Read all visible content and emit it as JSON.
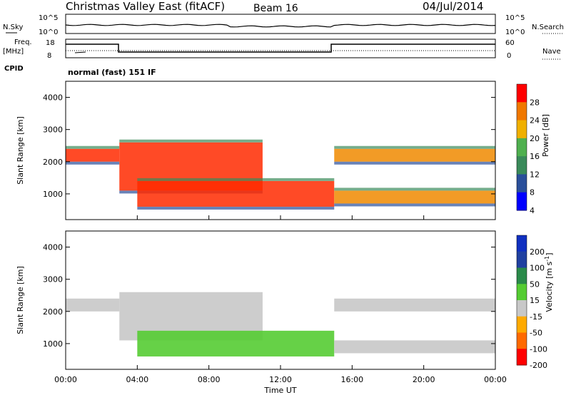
{
  "header": {
    "title": "Christmas Valley East (fitACF)",
    "beam": "Beam 16",
    "date": "04/Jul/2014"
  },
  "noise_panel": {
    "left_label": "N.Sky",
    "left_ticks": [
      "10^5",
      "10^0"
    ],
    "right_label": "N.Search",
    "right_ticks": [
      "10^5",
      "10^0"
    ]
  },
  "freq_panel": {
    "left_label_1": "Freq.",
    "left_label_2": "[MHz]",
    "left_ticks": [
      "18",
      "8"
    ],
    "right_label": "Nave",
    "right_ticks": [
      "60",
      "0"
    ]
  },
  "cpid": {
    "label": "CPID",
    "value": "normal (fast) 151 IF"
  },
  "colors": {
    "power": [
      "#0000ff",
      "#2a4f9a",
      "#3a8a5a",
      "#4fb04f",
      "#f0b000",
      "#f07800",
      "#ff0000"
    ],
    "velocity": [
      "#ff0000",
      "#ff6a00",
      "#ffaa00",
      "#c8c8c8",
      "#55cc33",
      "#2a8a4a",
      "#2040a0",
      "#1030c0"
    ]
  },
  "chart_data": [
    {
      "type": "heatmap",
      "name": "power",
      "ylabel": "Slant Range [km]",
      "yticks": [
        "1000",
        "2000",
        "3000",
        "4000"
      ],
      "ylim": [
        200,
        4500
      ],
      "xlim": [
        0,
        24
      ],
      "colorbar": {
        "label": "Power [dB]",
        "ticks": [
          "4",
          "8",
          "12",
          "16",
          "20",
          "24",
          "28"
        ]
      },
      "bands": [
        {
          "x": [
            0,
            3
          ],
          "range": [
            2000,
            2400
          ],
          "level": "high"
        },
        {
          "x": [
            3,
            11
          ],
          "range": [
            1100,
            2600
          ],
          "level": "high"
        },
        {
          "x": [
            4,
            15
          ],
          "range": [
            600,
            1400
          ],
          "level": "high"
        },
        {
          "x": [
            15,
            24
          ],
          "range": [
            2000,
            2400
          ],
          "level": "medium"
        },
        {
          "x": [
            15,
            24
          ],
          "range": [
            700,
            1100
          ],
          "level": "medium"
        }
      ]
    },
    {
      "type": "heatmap",
      "name": "velocity",
      "ylabel": "Slant Range [km]",
      "yticks": [
        "1000",
        "2000",
        "3000",
        "4000"
      ],
      "ylim": [
        200,
        4500
      ],
      "xlim": [
        0,
        24
      ],
      "xlabel": "Time UT",
      "xticks": [
        "00:00",
        "04:00",
        "08:00",
        "12:00",
        "16:00",
        "20:00",
        "00:00"
      ],
      "colorbar": {
        "label": "Velocity [m s",
        "label_sup": "-1",
        "label_end": "]",
        "ticks": [
          "200",
          "100",
          "50",
          "15",
          "-15",
          "-50",
          "-100",
          "-200"
        ]
      }
    }
  ]
}
